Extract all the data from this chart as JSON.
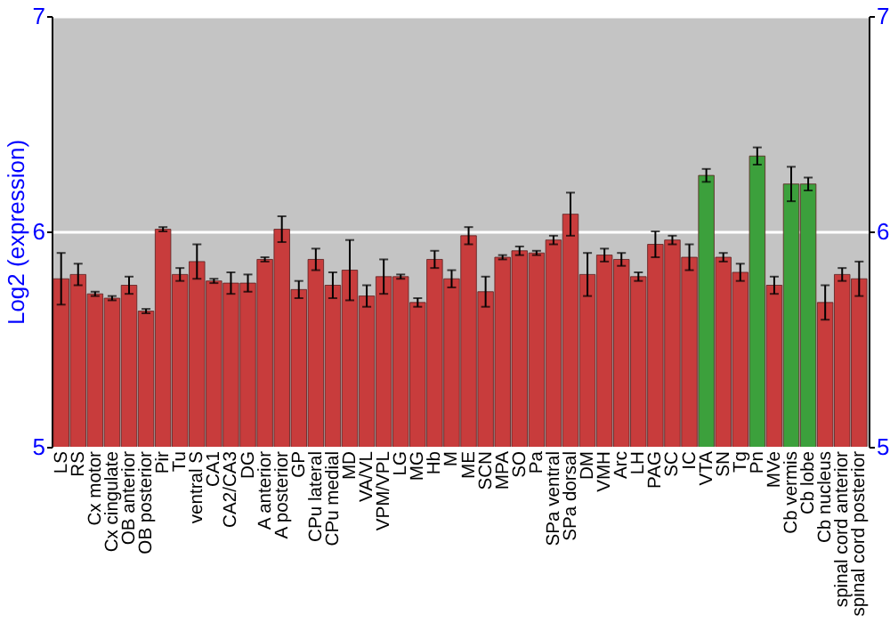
{
  "chart_data": {
    "type": "bar",
    "ylabel": "Log2 (expression)",
    "categories": [
      "LS",
      "RS",
      "Cx motor",
      "Cx cingulate",
      "OB anterior",
      "OB posterior",
      "Pir",
      "Tu",
      "ventral S",
      "CA1",
      "CA2/CA3",
      "DG",
      "A anterior",
      "A posterior",
      "GP",
      "CPu lateral",
      "CPu medial",
      "MD",
      "VA/VL",
      "VPM/VPL",
      "LG",
      "MG",
      "Hb",
      "M",
      "ME",
      "SCN",
      "MPA",
      "SO",
      "Pa",
      "SPa ventral",
      "SPa dorsal",
      "DM",
      "VMH",
      "Arc",
      "LH",
      "PAG",
      "SC",
      "IC",
      "VTA",
      "SN",
      "Tg",
      "Pn",
      "MVe",
      "Cb vermis",
      "Cb lobe",
      "Cb nucleus",
      "spinal cord anterior",
      "spinal cord posterior"
    ],
    "values": [
      5.78,
      5.8,
      5.71,
      5.69,
      5.75,
      5.63,
      6.01,
      5.8,
      5.86,
      5.77,
      5.76,
      5.76,
      5.87,
      6.01,
      5.73,
      5.87,
      5.75,
      5.82,
      5.7,
      5.79,
      5.79,
      5.67,
      5.87,
      5.78,
      5.98,
      5.72,
      5.88,
      5.91,
      5.9,
      5.96,
      6.08,
      5.8,
      5.89,
      5.87,
      5.79,
      5.94,
      5.96,
      5.88,
      6.26,
      5.88,
      5.81,
      6.35,
      5.75,
      6.22,
      6.22,
      5.67,
      5.8,
      5.78
    ],
    "errors": [
      0.12,
      0.05,
      0.01,
      0.01,
      0.04,
      0.01,
      0.01,
      0.03,
      0.08,
      0.01,
      0.05,
      0.04,
      0.01,
      0.06,
      0.04,
      0.05,
      0.06,
      0.14,
      0.05,
      0.08,
      0.01,
      0.02,
      0.04,
      0.04,
      0.04,
      0.07,
      0.01,
      0.02,
      0.01,
      0.02,
      0.1,
      0.1,
      0.03,
      0.03,
      0.02,
      0.06,
      0.02,
      0.06,
      0.03,
      0.02,
      0.04,
      0.04,
      0.04,
      0.08,
      0.03,
      0.08,
      0.03,
      0.08
    ],
    "colors": [
      "#c83c3c",
      "#c83c3c",
      "#c83c3c",
      "#c83c3c",
      "#c83c3c",
      "#c83c3c",
      "#c83c3c",
      "#c83c3c",
      "#c83c3c",
      "#c83c3c",
      "#c83c3c",
      "#c83c3c",
      "#c83c3c",
      "#c83c3c",
      "#c83c3c",
      "#c83c3c",
      "#c83c3c",
      "#c83c3c",
      "#c83c3c",
      "#c83c3c",
      "#c83c3c",
      "#c83c3c",
      "#c83c3c",
      "#c83c3c",
      "#c83c3c",
      "#c83c3c",
      "#c83c3c",
      "#c83c3c",
      "#c83c3c",
      "#c83c3c",
      "#c83c3c",
      "#c83c3c",
      "#c83c3c",
      "#c83c3c",
      "#c83c3c",
      "#c83c3c",
      "#c83c3c",
      "#c83c3c",
      "#3ca03c",
      "#c83c3c",
      "#c83c3c",
      "#3ca03c",
      "#c83c3c",
      "#3ca03c",
      "#3ca03c",
      "#c83c3c",
      "#c83c3c",
      "#c83c3c"
    ],
    "ylim": [
      5,
      7
    ],
    "yticks": [
      5,
      6,
      7
    ],
    "y2lim": [
      5,
      7
    ],
    "y2ticks": [
      5,
      6,
      7
    ],
    "grid": "y"
  }
}
